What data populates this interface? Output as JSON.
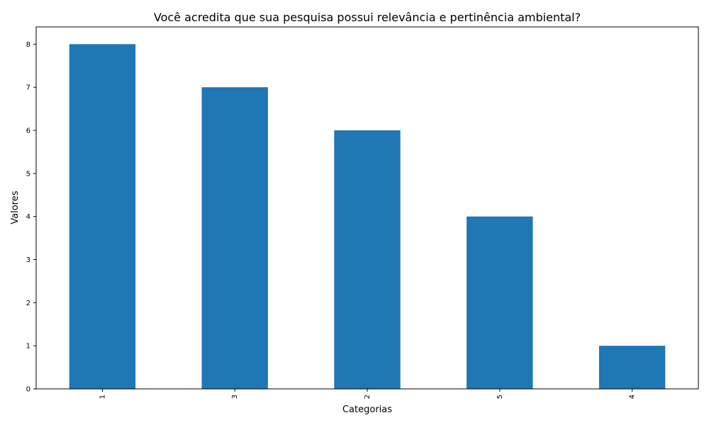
{
  "chart_data": {
    "type": "bar",
    "title": "Você acredita que sua pesquisa possui relevância e pertinência ambiental?",
    "xlabel": "Categorias",
    "ylabel": "Valores",
    "categories": [
      "1",
      "3",
      "2",
      "5",
      "4"
    ],
    "values": [
      8,
      7,
      6,
      4,
      1
    ],
    "ylim": [
      0,
      8.4
    ],
    "yticks": [
      0,
      1,
      2,
      3,
      4,
      5,
      6,
      7,
      8
    ],
    "bar_color": "#1f77b4",
    "grid": false,
    "legend": "none"
  }
}
